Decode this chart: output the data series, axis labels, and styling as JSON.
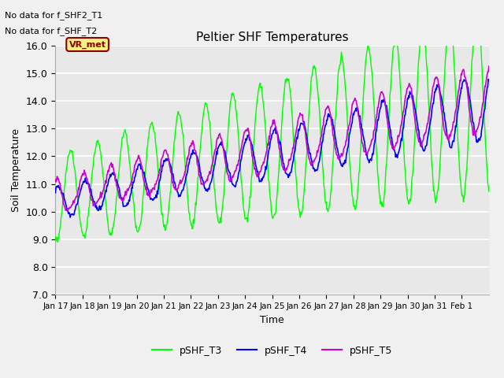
{
  "title": "Peltier SHF Temperatures",
  "xlabel": "Time",
  "ylabel": "Soil Temperature",
  "ylim": [
    7.0,
    16.0
  ],
  "yticks": [
    7.0,
    8.0,
    9.0,
    10.0,
    11.0,
    12.0,
    13.0,
    14.0,
    15.0,
    16.0
  ],
  "xtick_labels": [
    "Jan 17",
    "Jan 18",
    "Jan 19",
    "Jan 20",
    "Jan 21",
    "Jan 22",
    "Jan 23",
    "Jan 24",
    "Jan 25",
    "Jan 26",
    "Jan 27",
    "Jan 28",
    "Jan 29",
    "Jan 30",
    "Jan 31",
    "Feb 1"
  ],
  "text_annotations": [
    "No data for f_SHF2_T1",
    "No data for f_SHF_T2"
  ],
  "vr_met_label": "VR_met",
  "legend_entries": [
    "pSHF_T3",
    "pSHF_T4",
    "pSHF_T5"
  ],
  "line_colors": [
    "#00FF00",
    "#0000FF",
    "#CC00CC"
  ],
  "fig_bg_color": "#F0F0F0",
  "plot_bg_color": "#E8E8E8",
  "grid_color": "#FFFFFF",
  "figsize": [
    6.4,
    4.8
  ],
  "dpi": 100
}
